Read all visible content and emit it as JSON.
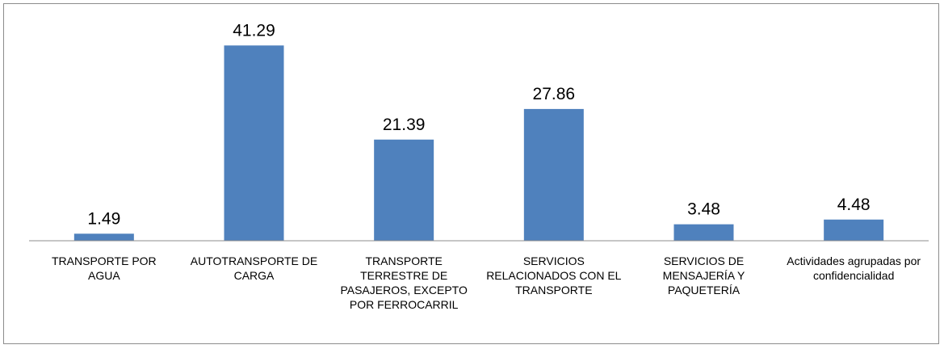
{
  "chart_data": {
    "type": "bar",
    "categories": [
      "TRANSPORTE POR AGUA",
      "AUTOTRANSPORTE DE CARGA",
      "TRANSPORTE TERRESTRE DE PASAJEROS, EXCEPTO POR FERROCARRIL",
      "SERVICIOS RELACIONADOS CON EL TRANSPORTE",
      "SERVICIOS DE MENSAJERÍA Y PAQUETERÍA",
      "Actividades agrupadas por confidencialidad"
    ],
    "values": [
      1.49,
      41.29,
      21.39,
      27.86,
      3.48,
      4.48
    ],
    "color": "#4f81bd",
    "ylim": [
      0,
      48
    ]
  }
}
